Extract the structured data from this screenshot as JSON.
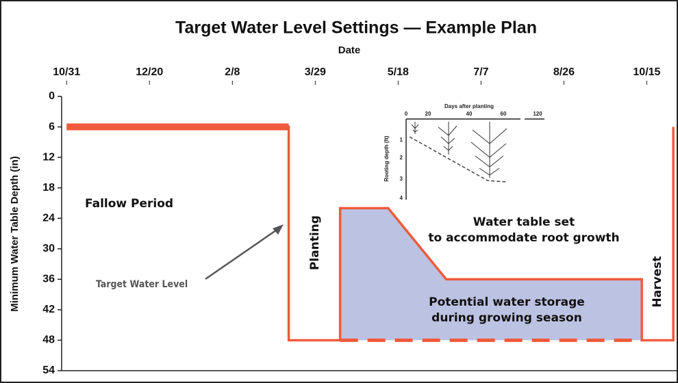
{
  "chart_data": {
    "type": "line",
    "title": "Target Water Level Settings — Example Plan",
    "xlabel": "Date",
    "ylabel": "Minimum Water Table Depth (in)",
    "xlim": [
      -3,
      368
    ],
    "xticks": [
      {
        "value": 0,
        "label": "10/31"
      },
      {
        "value": 50,
        "label": "12/20"
      },
      {
        "value": 100,
        "label": "2/8"
      },
      {
        "value": 150,
        "label": "3/29"
      },
      {
        "value": 200,
        "label": "5/18"
      },
      {
        "value": 250,
        "label": "7/7"
      },
      {
        "value": 300,
        "label": "8/26"
      },
      {
        "value": 350,
        "label": "10/15"
      }
    ],
    "ylim": [
      0,
      54
    ],
    "yticks": [
      0,
      6,
      12,
      18,
      24,
      30,
      36,
      42,
      48,
      54
    ],
    "inverted_y": true,
    "series": [
      {
        "name": "Target Water Level",
        "color": "#f05a3c",
        "x": [
          0,
          134,
          134,
          165,
          165,
          194,
          229,
          347,
          347,
          366,
          366
        ],
        "values": [
          6,
          6,
          48,
          48,
          22,
          22,
          36,
          36,
          48,
          48,
          6
        ]
      }
    ],
    "fill_color": "#bcc3e2",
    "annotations": {
      "fallow": "Fallow Period",
      "planting": "Planting",
      "root": "Water table set to accommodate root growth",
      "storage": "Potential water storage during growing season",
      "harvest": "Harvest"
    },
    "inset": {
      "xlabel": "Days after planting",
      "ylabel": "Rooting depth (ft)",
      "xticks": [
        0,
        20,
        40,
        60,
        120
      ],
      "yticks": [
        1,
        2,
        3,
        4
      ]
    }
  }
}
